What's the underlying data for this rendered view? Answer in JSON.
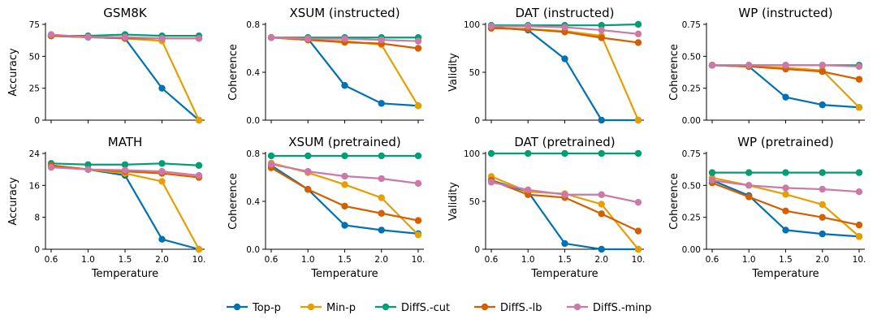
{
  "legend": [
    {
      "name": "Top-p",
      "color": "#0072B2"
    },
    {
      "name": "Min-p",
      "color": "#E69F00"
    },
    {
      "name": "DiffS.-cut",
      "color": "#009E73"
    },
    {
      "name": "DiffS.-lb",
      "color": "#D55E00"
    },
    {
      "name": "DiffS.-minp",
      "color": "#CC79A7"
    }
  ],
  "chart_data": [
    {
      "type": "line",
      "title": "GSM8K",
      "xlabel": "",
      "ylabel": "Accuracy",
      "categories": [
        "0.6",
        "1.0",
        "1.5",
        "2.0",
        "10."
      ],
      "ylim": [
        0,
        75
      ],
      "yticks": [
        "0",
        "25",
        "50",
        "75"
      ],
      "show_xtick_labels": false,
      "series": [
        {
          "name": "Top-p",
          "values": [
            66,
            65,
            64,
            25,
            0
          ]
        },
        {
          "name": "Min-p",
          "values": [
            66,
            65,
            64,
            62,
            0
          ]
        },
        {
          "name": "DiffS.-cut",
          "values": [
            66,
            66,
            67,
            66,
            66
          ]
        },
        {
          "name": "DiffS.-lb",
          "values": [
            66,
            65,
            64,
            64,
            64
          ]
        },
        {
          "name": "DiffS.-minp",
          "values": [
            67,
            65,
            65,
            64,
            64
          ]
        }
      ]
    },
    {
      "type": "line",
      "title": "XSUM (instructed)",
      "xlabel": "",
      "ylabel": "Coherence",
      "categories": [
        "0.6",
        "1.0",
        "1.5",
        "2.0",
        "10."
      ],
      "ylim": [
        0,
        0.8
      ],
      "yticks": [
        "0.0",
        "0.4",
        "0.8"
      ],
      "show_xtick_labels": false,
      "series": [
        {
          "name": "Top-p",
          "values": [
            0.69,
            0.68,
            0.29,
            0.14,
            0.12
          ]
        },
        {
          "name": "Min-p",
          "values": [
            0.69,
            0.67,
            0.66,
            0.63,
            0.12
          ]
        },
        {
          "name": "DiffS.-cut",
          "values": [
            0.69,
            0.69,
            0.69,
            0.69,
            0.69
          ]
        },
        {
          "name": "DiffS.-lb",
          "values": [
            0.69,
            0.67,
            0.65,
            0.64,
            0.6
          ]
        },
        {
          "name": "DiffS.-minp",
          "values": [
            0.69,
            0.68,
            0.68,
            0.67,
            0.66
          ]
        }
      ]
    },
    {
      "type": "line",
      "title": "DAT (instructed)",
      "xlabel": "",
      "ylabel": "Validity",
      "categories": [
        "0.6",
        "1.0",
        "1.5",
        "2.0",
        "10."
      ],
      "ylim": [
        0,
        100
      ],
      "yticks": [
        "0",
        "50",
        "100"
      ],
      "show_xtick_labels": false,
      "series": [
        {
          "name": "Top-p",
          "values": [
            97,
            94,
            64,
            0,
            0
          ]
        },
        {
          "name": "Min-p",
          "values": [
            96,
            95,
            93,
            88,
            0
          ]
        },
        {
          "name": "DiffS.-cut",
          "values": [
            99,
            99,
            99,
            99,
            100
          ]
        },
        {
          "name": "DiffS.-lb",
          "values": [
            96,
            95,
            92,
            86,
            81
          ]
        },
        {
          "name": "DiffS.-minp",
          "values": [
            98,
            98,
            97,
            94,
            90
          ]
        }
      ]
    },
    {
      "type": "line",
      "title": "WP (instructed)",
      "xlabel": "",
      "ylabel": "Coherence",
      "categories": [
        "0.6",
        "1.0",
        "1.5",
        "2.0",
        "10."
      ],
      "ylim": [
        0,
        0.75
      ],
      "yticks": [
        "0.00",
        "0.25",
        "0.50",
        "0.75"
      ],
      "show_xtick_labels": false,
      "series": [
        {
          "name": "Top-p",
          "values": [
            0.43,
            0.42,
            0.18,
            0.12,
            0.1
          ]
        },
        {
          "name": "Min-p",
          "values": [
            0.43,
            0.42,
            0.41,
            0.39,
            0.1
          ]
        },
        {
          "name": "DiffS.-cut",
          "values": [
            0.43,
            0.43,
            0.43,
            0.43,
            0.43
          ]
        },
        {
          "name": "DiffS.-lb",
          "values": [
            0.43,
            0.42,
            0.4,
            0.38,
            0.32
          ]
        },
        {
          "name": "DiffS.-minp",
          "values": [
            0.43,
            0.43,
            0.43,
            0.43,
            0.42
          ]
        }
      ]
    },
    {
      "type": "line",
      "title": "MATH",
      "xlabel": "Temperature",
      "ylabel": "Accuracy",
      "categories": [
        "0.6",
        "1.0",
        "1.5",
        "2.0",
        "10."
      ],
      "ylim": [
        0,
        24
      ],
      "yticks": [
        "0",
        "8",
        "16",
        "24"
      ],
      "show_xtick_labels": true,
      "series": [
        {
          "name": "Top-p",
          "values": [
            21,
            20,
            18.5,
            2.5,
            0
          ]
        },
        {
          "name": "Min-p",
          "values": [
            21,
            20,
            19,
            17,
            0
          ]
        },
        {
          "name": "DiffS.-cut",
          "values": [
            21.5,
            21.2,
            21.2,
            21.5,
            21
          ]
        },
        {
          "name": "DiffS.-lb",
          "values": [
            21,
            20,
            19.5,
            19,
            18
          ]
        },
        {
          "name": "DiffS.-minp",
          "values": [
            20.5,
            20,
            19.8,
            19.5,
            18.5
          ]
        }
      ]
    },
    {
      "type": "line",
      "title": "XSUM (pretrained)",
      "xlabel": "Temperature",
      "ylabel": "Coherence",
      "categories": [
        "0.6",
        "1.0",
        "1.5",
        "2.0",
        "10."
      ],
      "ylim": [
        0,
        0.8
      ],
      "yticks": [
        "0.0",
        "0.4",
        "0.8"
      ],
      "show_xtick_labels": true,
      "series": [
        {
          "name": "Top-p",
          "values": [
            0.7,
            0.5,
            0.2,
            0.16,
            0.13
          ]
        },
        {
          "name": "Min-p",
          "values": [
            0.72,
            0.64,
            0.54,
            0.43,
            0.12
          ]
        },
        {
          "name": "DiffS.-cut",
          "values": [
            0.78,
            0.78,
            0.78,
            0.78,
            0.78
          ]
        },
        {
          "name": "DiffS.-lb",
          "values": [
            0.68,
            0.5,
            0.36,
            0.3,
            0.24
          ]
        },
        {
          "name": "DiffS.-minp",
          "values": [
            0.71,
            0.65,
            0.61,
            0.59,
            0.55
          ]
        }
      ]
    },
    {
      "type": "line",
      "title": "DAT (pretrained)",
      "xlabel": "Temperature",
      "ylabel": "Validity",
      "categories": [
        "0.6",
        "1.0",
        "1.5",
        "2.0",
        "10."
      ],
      "ylim": [
        0,
        100
      ],
      "yticks": [
        "0",
        "50",
        "100"
      ],
      "show_xtick_labels": true,
      "series": [
        {
          "name": "Top-p",
          "values": [
            72,
            60,
            6,
            0,
            0
          ]
        },
        {
          "name": "Min-p",
          "values": [
            76,
            60,
            58,
            47,
            0
          ]
        },
        {
          "name": "DiffS.-cut",
          "values": [
            100,
            100,
            100,
            100,
            100
          ]
        },
        {
          "name": "DiffS.-lb",
          "values": [
            72,
            57,
            54,
            37,
            19
          ]
        },
        {
          "name": "DiffS.-minp",
          "values": [
            70,
            62,
            57,
            57,
            49
          ]
        }
      ]
    },
    {
      "type": "line",
      "title": "WP (pretrained)",
      "xlabel": "Temperature",
      "ylabel": "Coherence",
      "categories": [
        "0.6",
        "1.0",
        "1.5",
        "2.0",
        "10."
      ],
      "ylim": [
        0,
        0.75
      ],
      "yticks": [
        "0.00",
        "0.25",
        "0.50",
        "0.75"
      ],
      "show_xtick_labels": true,
      "series": [
        {
          "name": "Top-p",
          "values": [
            0.54,
            0.42,
            0.15,
            0.12,
            0.1
          ]
        },
        {
          "name": "Min-p",
          "values": [
            0.56,
            0.5,
            0.43,
            0.35,
            0.1
          ]
        },
        {
          "name": "DiffS.-cut",
          "values": [
            0.6,
            0.6,
            0.6,
            0.6,
            0.6
          ]
        },
        {
          "name": "DiffS.-lb",
          "values": [
            0.52,
            0.41,
            0.3,
            0.25,
            0.19
          ]
        },
        {
          "name": "DiffS.-minp",
          "values": [
            0.54,
            0.5,
            0.48,
            0.47,
            0.45
          ]
        }
      ]
    }
  ]
}
